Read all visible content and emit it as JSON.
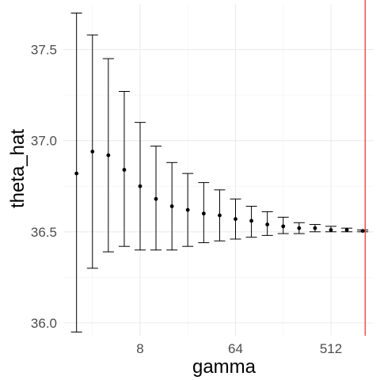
{
  "chart_data": {
    "type": "errorbar",
    "title": "",
    "xlabel": "gamma",
    "ylabel": "theta_hat",
    "x_scale": "log2",
    "xlim": [
      1.5,
      1300
    ],
    "ylim": [
      35.93,
      37.75
    ],
    "x_ticks": [
      8,
      64,
      512
    ],
    "x_tick_labels": [
      "8",
      "64",
      "512"
    ],
    "y_ticks": [
      36.0,
      36.5,
      37.0,
      37.5
    ],
    "y_tick_labels": [
      "36.0",
      "36.5",
      "37.0",
      "37.5"
    ],
    "grid": true,
    "theme": "minimal",
    "points": [
      {
        "x": 2.0,
        "y": 36.82,
        "ymin": 35.95,
        "ymax": 37.7
      },
      {
        "x": 2.83,
        "y": 36.94,
        "ymin": 36.3,
        "ymax": 37.58
      },
      {
        "x": 4.0,
        "y": 36.92,
        "ymin": 36.39,
        "ymax": 37.45
      },
      {
        "x": 5.66,
        "y": 36.84,
        "ymin": 36.42,
        "ymax": 37.27
      },
      {
        "x": 8.0,
        "y": 36.75,
        "ymin": 36.4,
        "ymax": 37.1
      },
      {
        "x": 11.3,
        "y": 36.68,
        "ymin": 36.4,
        "ymax": 36.97
      },
      {
        "x": 16.0,
        "y": 36.64,
        "ymin": 36.4,
        "ymax": 36.88
      },
      {
        "x": 22.6,
        "y": 36.62,
        "ymin": 36.42,
        "ymax": 36.82
      },
      {
        "x": 32.0,
        "y": 36.6,
        "ymin": 36.44,
        "ymax": 36.77
      },
      {
        "x": 45.3,
        "y": 36.59,
        "ymin": 36.45,
        "ymax": 36.73
      },
      {
        "x": 64.0,
        "y": 36.57,
        "ymin": 36.46,
        "ymax": 36.68
      },
      {
        "x": 90.5,
        "y": 36.56,
        "ymin": 36.47,
        "ymax": 36.64
      },
      {
        "x": 128.0,
        "y": 36.54,
        "ymin": 36.48,
        "ymax": 36.61
      },
      {
        "x": 181.0,
        "y": 36.53,
        "ymin": 36.49,
        "ymax": 36.58
      },
      {
        "x": 256.0,
        "y": 36.52,
        "ymin": 36.49,
        "ymax": 36.55
      },
      {
        "x": 362.0,
        "y": 36.52,
        "ymin": 36.5,
        "ymax": 36.54
      },
      {
        "x": 512.0,
        "y": 36.51,
        "ymin": 36.5,
        "ymax": 36.53
      },
      {
        "x": 724.0,
        "y": 36.51,
        "ymin": 36.5,
        "ymax": 36.52
      },
      {
        "x": 1024.0,
        "y": 36.505,
        "ymin": 36.5,
        "ymax": 36.51
      }
    ],
    "reference_line": {
      "orientation": "vertical",
      "x": 1080,
      "color": "#e8393a"
    }
  }
}
